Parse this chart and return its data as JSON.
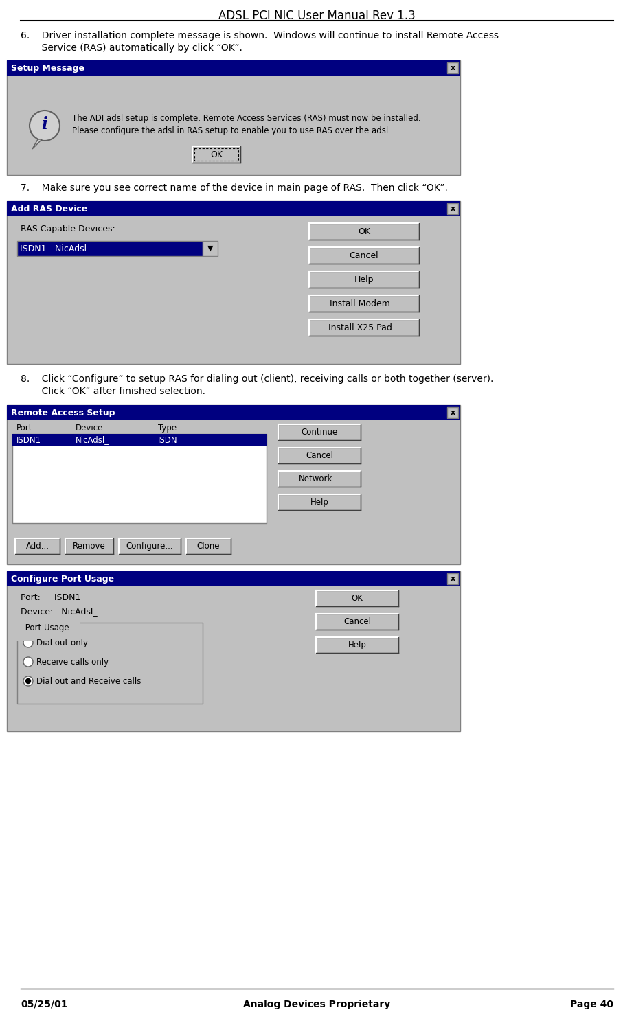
{
  "title": "ADSL PCI NIC User Manual Rev 1.3",
  "footer_left": "05/25/01",
  "footer_center": "Analog Devices Proprietary",
  "footer_right": "Page 40",
  "bg_color": "#ffffff",
  "item6_line1": "6.    Driver installation complete message is shown.  Windows will continue to install Remote Access",
  "item6_line2": "       Service (RAS) automatically by click “OK”.",
  "item7_line1": "7.    Make sure you see correct name of the device in main page of RAS.  Then click “OK”.",
  "item8_line1": "8.    Click “Configure” to setup RAS for dialing out (client), receiving calls or both together (server).",
  "item8_line2": "       Click “OK” after finished selection.",
  "dialog1_title": "Setup Message",
  "dialog1_title_bg": "#000080",
  "dialog1_title_color": "#ffffff",
  "dialog1_bg": "#c0c0c0",
  "dialog1_msg_line1": "The ADI adsl setup is complete. Remote Access Services (RAS) must now be installed.",
  "dialog1_msg_line2": "Please configure the adsl in RAS setup to enable you to use RAS over the adsl.",
  "dialog2_title": "Add RAS Device",
  "dialog2_title_bg": "#000080",
  "dialog2_title_color": "#ffffff",
  "dialog2_bg": "#c0c0c0",
  "dialog2_label": "RAS Capable Devices:",
  "dialog2_dropdown": "ISDN1 - NicAdsl_",
  "dialog2_btn1": "OK",
  "dialog2_btn2": "Cancel",
  "dialog2_btn3": "Help",
  "dialog2_btn4": "Install Modem...",
  "dialog2_btn5": "Install X25 Pad...",
  "dialog3_title": "Remote Access Setup",
  "dialog3_title_bg": "#000080",
  "dialog3_title_color": "#ffffff",
  "dialog3_bg": "#c0c0c0",
  "dialog3_col1": "Port",
  "dialog3_col2": "Device",
  "dialog3_col3": "Type",
  "dialog3_row1": [
    "ISDN1",
    "NicAdsl_",
    "ISDN"
  ],
  "dialog3_btn1": "Continue",
  "dialog3_btn2": "Cancel",
  "dialog3_btn3": "Network...",
  "dialog3_btn4": "Help",
  "dialog3_btn5": "Add...",
  "dialog3_btn6": "Remove",
  "dialog3_btn7": "Configure...",
  "dialog3_btn8": "Clone",
  "dialog4_title": "Configure Port Usage",
  "dialog4_title_bg": "#000080",
  "dialog4_title_color": "#ffffff",
  "dialog4_bg": "#c0c0c0",
  "dialog4_port": "Port:     ISDN1",
  "dialog4_device": "Device:   NicAdsl_",
  "dialog4_group": "Port Usage",
  "dialog4_opt1": "Dial out only",
  "dialog4_opt2": "Receive calls only",
  "dialog4_opt3": "Dial out and Receive calls",
  "dialog4_btn1": "OK",
  "dialog4_btn2": "Cancel",
  "dialog4_btn3": "Help"
}
